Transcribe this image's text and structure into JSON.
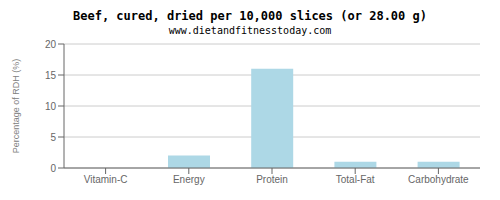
{
  "chart_data": {
    "type": "bar",
    "title": "Beef, cured, dried per 10,000 slices (or 28.00 g)",
    "subtitle": "www.dietandfitnesstoday.com",
    "categories": [
      "Vitamin-C",
      "Energy",
      "Protein",
      "Total-Fat",
      "Carbohydrate"
    ],
    "values": [
      0,
      2,
      16,
      1,
      1
    ],
    "color": "#add8e6",
    "ylabel": "Percentage of RDH (%)",
    "ylim": [
      0,
      20
    ],
    "yticks": [
      0,
      5,
      10,
      15,
      20
    ],
    "grid": true
  }
}
